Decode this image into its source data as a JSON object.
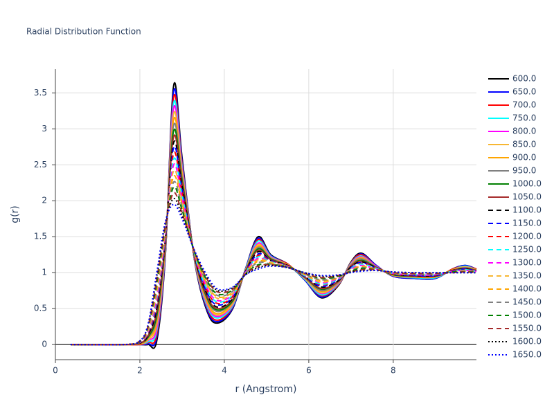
{
  "chart_data": {
    "type": "line",
    "title": "Radial Distribution Function",
    "x_label": "r (Angstrom)",
    "y_label": "g(r)",
    "x": [
      0.36,
      1.6,
      2.0,
      2.2,
      2.4,
      2.6,
      2.8,
      3.0,
      3.3,
      3.6,
      3.85,
      4.2,
      4.5,
      4.8,
      5.1,
      5.5,
      5.9,
      6.3,
      6.7,
      7.0,
      7.25,
      7.6,
      8.0,
      8.5,
      9.0,
      9.4,
      9.7,
      9.97
    ],
    "xlim": [
      0,
      9.97
    ],
    "xticks": [
      0,
      2,
      4,
      6,
      8
    ],
    "ylim": [
      -0.21,
      3.83
    ],
    "yticks": [
      0,
      0.5,
      1,
      1.5,
      2,
      2.5,
      3,
      3.5
    ],
    "grid": true,
    "legend": "right",
    "series": [
      {
        "name": "600.0",
        "color": "black",
        "dash": "solid",
        "values": [
          0,
          0,
          0,
          0,
          0.05,
          1.2,
          3.6,
          2.6,
          1.15,
          0.45,
          0.3,
          0.5,
          1.05,
          1.5,
          1.25,
          1.12,
          0.9,
          0.65,
          0.82,
          1.15,
          1.27,
          1.1,
          0.95,
          0.92,
          0.92,
          1.05,
          1.1,
          1.05
        ]
      },
      {
        "name": "650.0",
        "color": "blue",
        "dash": "solid",
        "values": [
          0,
          0,
          0,
          0.01,
          0.1,
          1.22,
          3.52,
          2.56,
          1.16,
          0.47,
          0.32,
          0.51,
          1.05,
          1.48,
          1.24,
          1.12,
          0.9,
          0.66,
          0.83,
          1.14,
          1.26,
          1.1,
          0.95,
          0.92,
          0.92,
          1.05,
          1.1,
          1.05
        ]
      },
      {
        "name": "700.0",
        "color": "red",
        "dash": "solid",
        "values": [
          0,
          0,
          0,
          0.03,
          0.14,
          1.25,
          3.44,
          2.52,
          1.16,
          0.5,
          0.34,
          0.53,
          1.04,
          1.46,
          1.23,
          1.12,
          0.91,
          0.68,
          0.83,
          1.14,
          1.25,
          1.09,
          0.96,
          0.93,
          0.93,
          1.05,
          1.09,
          1.05
        ]
      },
      {
        "name": "750.0",
        "color": "cyan",
        "dash": "solid",
        "values": [
          0,
          0,
          0.01,
          0.04,
          0.19,
          1.27,
          3.36,
          2.48,
          1.17,
          0.52,
          0.37,
          0.54,
          1.04,
          1.44,
          1.23,
          1.11,
          0.91,
          0.69,
          0.84,
          1.13,
          1.23,
          1.09,
          0.96,
          0.93,
          0.93,
          1.04,
          1.09,
          1.04
        ]
      },
      {
        "name": "800.0",
        "color": "magenta",
        "dash": "solid",
        "values": [
          0,
          0,
          0.01,
          0.06,
          0.23,
          1.3,
          3.29,
          2.44,
          1.18,
          0.55,
          0.39,
          0.56,
          1.03,
          1.41,
          1.22,
          1.11,
          0.92,
          0.71,
          0.85,
          1.12,
          1.22,
          1.09,
          0.96,
          0.94,
          0.94,
          1.04,
          1.08,
          1.04
        ]
      },
      {
        "name": "850.0",
        "color": "#f7b733",
        "dash": "solid",
        "values": [
          0,
          0,
          0.01,
          0.07,
          0.28,
          1.32,
          3.21,
          2.4,
          1.19,
          0.57,
          0.41,
          0.57,
          1.03,
          1.39,
          1.21,
          1.11,
          0.92,
          0.72,
          0.86,
          1.11,
          1.21,
          1.08,
          0.96,
          0.94,
          0.94,
          1.04,
          1.08,
          1.04
        ]
      },
      {
        "name": "900.0",
        "color": "orange",
        "dash": "solid",
        "values": [
          0,
          0,
          0.01,
          0.09,
          0.32,
          1.34,
          3.13,
          2.36,
          1.19,
          0.59,
          0.43,
          0.59,
          1.03,
          1.37,
          1.2,
          1.11,
          0.93,
          0.74,
          0.86,
          1.11,
          1.2,
          1.08,
          0.97,
          0.94,
          0.94,
          1.04,
          1.07,
          1.04
        ]
      },
      {
        "name": "950.0",
        "color": "gray",
        "dash": "solid",
        "values": [
          0,
          0,
          0.02,
          0.1,
          0.37,
          1.37,
          3.05,
          2.32,
          1.2,
          0.62,
          0.46,
          0.6,
          1.02,
          1.35,
          1.2,
          1.1,
          0.93,
          0.75,
          0.87,
          1.1,
          1.19,
          1.08,
          0.97,
          0.95,
          0.95,
          1.03,
          1.07,
          1.03
        ]
      },
      {
        "name": "1000.0",
        "color": "green",
        "dash": "solid",
        "values": [
          0,
          0,
          0.02,
          0.11,
          0.41,
          1.39,
          2.97,
          2.28,
          1.21,
          0.64,
          0.48,
          0.61,
          1.02,
          1.33,
          1.19,
          1.1,
          0.94,
          0.77,
          0.88,
          1.09,
          1.17,
          1.07,
          0.97,
          0.95,
          0.95,
          1.03,
          1.06,
          1.03
        ]
      },
      {
        "name": "1050.0",
        "color": "brown",
        "dash": "solid",
        "values": [
          0,
          0,
          0.02,
          0.13,
          0.46,
          1.41,
          2.89,
          2.24,
          1.21,
          0.66,
          0.5,
          0.63,
          1.02,
          1.31,
          1.18,
          1.1,
          0.94,
          0.78,
          0.88,
          1.09,
          1.16,
          1.07,
          0.98,
          0.95,
          0.95,
          1.03,
          1.06,
          1.03
        ]
      },
      {
        "name": "1100.0",
        "color": "black",
        "dash": "dash",
        "values": [
          0,
          0,
          0.02,
          0.14,
          0.5,
          1.44,
          2.81,
          2.2,
          1.22,
          0.69,
          0.52,
          0.64,
          1.01,
          1.29,
          1.17,
          1.1,
          0.95,
          0.8,
          0.89,
          1.08,
          1.15,
          1.07,
          0.98,
          0.96,
          0.96,
          1.03,
          1.05,
          1.03
        ]
      },
      {
        "name": "1150.0",
        "color": "blue",
        "dash": "dash",
        "values": [
          0,
          0,
          0.03,
          0.16,
          0.55,
          1.46,
          2.74,
          2.15,
          1.23,
          0.71,
          0.55,
          0.66,
          1.01,
          1.26,
          1.17,
          1.09,
          0.95,
          0.81,
          0.9,
          1.07,
          1.14,
          1.06,
          0.98,
          0.96,
          0.96,
          1.02,
          1.05,
          1.02
        ]
      },
      {
        "name": "1200.0",
        "color": "red",
        "dash": "dash",
        "values": [
          0,
          0,
          0.03,
          0.17,
          0.59,
          1.49,
          2.66,
          2.11,
          1.24,
          0.74,
          0.57,
          0.67,
          1.0,
          1.24,
          1.16,
          1.09,
          0.96,
          0.83,
          0.91,
          1.06,
          1.13,
          1.06,
          0.98,
          0.97,
          0.97,
          1.02,
          1.04,
          1.02
        ]
      },
      {
        "name": "1250.0",
        "color": "cyan",
        "dash": "dash",
        "values": [
          0,
          0,
          0.03,
          0.19,
          0.64,
          1.51,
          2.58,
          2.07,
          1.24,
          0.76,
          0.59,
          0.69,
          1.0,
          1.22,
          1.15,
          1.09,
          0.96,
          0.84,
          0.91,
          1.06,
          1.12,
          1.06,
          0.99,
          0.97,
          0.97,
          1.02,
          1.04,
          1.02
        ]
      },
      {
        "name": "1300.0",
        "color": "magenta",
        "dash": "dash",
        "values": [
          0,
          0,
          0.03,
          0.2,
          0.68,
          1.53,
          2.5,
          2.03,
          1.25,
          0.78,
          0.61,
          0.7,
          1.0,
          1.2,
          1.14,
          1.09,
          0.97,
          0.86,
          0.92,
          1.05,
          1.1,
          1.05,
          0.99,
          0.97,
          0.97,
          1.02,
          1.03,
          1.02
        ]
      },
      {
        "name": "1350.0",
        "color": "#f7b733",
        "dash": "dash",
        "values": [
          0,
          0,
          0.04,
          0.21,
          0.73,
          1.56,
          2.42,
          1.99,
          1.26,
          0.81,
          0.64,
          0.71,
          0.99,
          1.18,
          1.14,
          1.08,
          0.97,
          0.87,
          0.93,
          1.04,
          1.09,
          1.05,
          0.99,
          0.98,
          0.98,
          1.01,
          1.03,
          1.01
        ]
      },
      {
        "name": "1400.0",
        "color": "orange",
        "dash": "dash",
        "values": [
          0,
          0,
          0.04,
          0.23,
          0.77,
          1.58,
          2.34,
          1.95,
          1.26,
          0.83,
          0.66,
          0.73,
          0.99,
          1.16,
          1.13,
          1.08,
          0.98,
          0.89,
          0.93,
          1.04,
          1.08,
          1.05,
          1.0,
          0.98,
          0.98,
          1.01,
          1.02,
          1.01
        ]
      },
      {
        "name": "1450.0",
        "color": "gray",
        "dash": "dash",
        "values": [
          0,
          0,
          0.04,
          0.24,
          0.82,
          1.6,
          2.26,
          1.91,
          1.27,
          0.85,
          0.68,
          0.74,
          0.99,
          1.14,
          1.12,
          1.08,
          0.98,
          0.9,
          0.94,
          1.03,
          1.07,
          1.04,
          1.0,
          0.98,
          0.98,
          1.01,
          1.02,
          1.01
        ]
      },
      {
        "name": "1500.0",
        "color": "green",
        "dash": "dash",
        "values": [
          0,
          0,
          0.04,
          0.26,
          0.86,
          1.63,
          2.19,
          1.87,
          1.28,
          0.88,
          0.7,
          0.76,
          0.98,
          1.11,
          1.11,
          1.08,
          0.99,
          0.92,
          0.95,
          1.02,
          1.06,
          1.04,
          1.0,
          0.99,
          0.99,
          1.01,
          1.01,
          1.01
        ]
      },
      {
        "name": "1550.0",
        "color": "brown",
        "dash": "dash",
        "values": [
          0,
          0,
          0.05,
          0.27,
          0.91,
          1.65,
          2.11,
          1.83,
          1.29,
          0.9,
          0.73,
          0.77,
          0.98,
          1.09,
          1.11,
          1.07,
          0.99,
          0.93,
          0.96,
          1.01,
          1.04,
          1.04,
          1.0,
          0.99,
          0.99,
          1.0,
          1.01,
          1.0
        ]
      },
      {
        "name": "1600.0",
        "color": "black",
        "dash": "dot",
        "values": [
          0,
          0,
          0.05,
          0.29,
          0.95,
          1.68,
          2.03,
          1.79,
          1.29,
          0.93,
          0.75,
          0.79,
          0.97,
          1.07,
          1.1,
          1.07,
          1.0,
          0.95,
          0.96,
          1.01,
          1.03,
          1.03,
          1.01,
          1.0,
          1.0,
          1.0,
          1.0,
          1.0
        ]
      },
      {
        "name": "1650.0",
        "color": "blue",
        "dash": "dot",
        "values": [
          0,
          0,
          0.05,
          0.3,
          1.0,
          1.7,
          1.95,
          1.75,
          1.3,
          0.95,
          0.77,
          0.8,
          0.97,
          1.05,
          1.09,
          1.07,
          1.0,
          0.96,
          0.97,
          1.0,
          1.02,
          1.03,
          1.01,
          1.0,
          1.0,
          1.0,
          1.0,
          1.0
        ]
      }
    ]
  }
}
